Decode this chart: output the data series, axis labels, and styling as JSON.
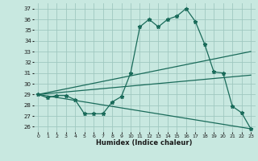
{
  "xlabel": "Humidex (Indice chaleur)",
  "ylabel": "",
  "bg_color": "#c8e8e0",
  "grid_color": "#a0c8c0",
  "line_color": "#1a6b5a",
  "xlim": [
    -0.5,
    23.5
  ],
  "ylim": [
    25.5,
    37.5
  ],
  "yticks": [
    26,
    27,
    28,
    29,
    30,
    31,
    32,
    33,
    34,
    35,
    36,
    37
  ],
  "xticks": [
    0,
    1,
    2,
    3,
    4,
    5,
    6,
    7,
    8,
    9,
    10,
    11,
    12,
    13,
    14,
    15,
    16,
    17,
    18,
    19,
    20,
    21,
    22,
    23
  ],
  "series1_x": [
    0,
    1,
    2,
    3,
    4,
    5,
    6,
    7,
    8,
    9,
    10,
    11,
    12,
    13,
    14,
    15,
    16,
    17,
    18,
    19,
    20,
    21,
    22,
    23
  ],
  "series1_y": [
    29.0,
    28.7,
    28.9,
    28.9,
    28.5,
    27.2,
    27.2,
    27.2,
    28.3,
    28.8,
    31.0,
    35.3,
    36.0,
    35.3,
    36.0,
    36.3,
    37.0,
    35.8,
    33.7,
    31.1,
    31.0,
    27.9,
    27.3,
    25.8
  ],
  "series2_x": [
    0,
    23
  ],
  "series2_y": [
    29.0,
    33.0
  ],
  "series3_x": [
    0,
    23
  ],
  "series3_y": [
    29.0,
    30.8
  ],
  "series4_x": [
    0,
    23
  ],
  "series4_y": [
    29.0,
    25.8
  ]
}
